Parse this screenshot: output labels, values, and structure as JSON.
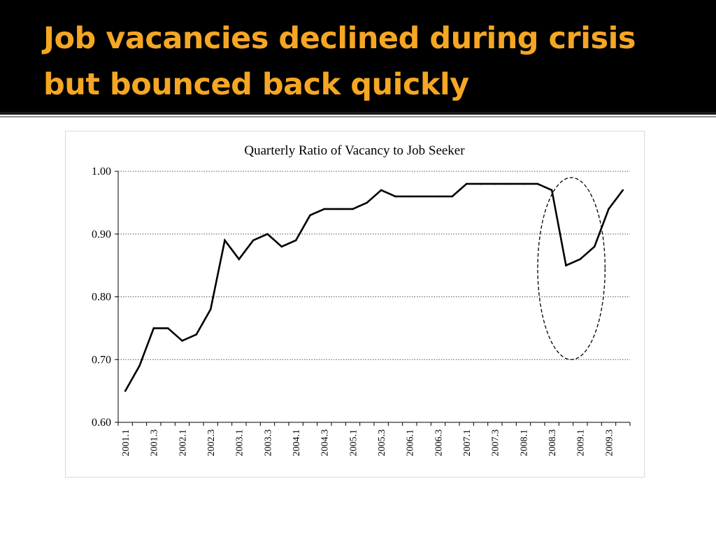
{
  "slide": {
    "title_line1": "Job vacancies declined during crisis",
    "title_line2": "but bounced back quickly"
  },
  "colors": {
    "title_band": "#000000",
    "title_text": "#f5a623",
    "series_line": "#000000",
    "gridline": "#555555"
  },
  "chart_data": {
    "type": "line",
    "title": "Quarterly Ratio of Vacancy to Job Seeker",
    "xlabel": "",
    "ylabel": "",
    "ylim": [
      0.6,
      1.0
    ],
    "yticks": [
      "1.00",
      "0.90",
      "0.80",
      "0.70",
      "0.60"
    ],
    "ytick_values": [
      1.0,
      0.9,
      0.8,
      0.7,
      0.6
    ],
    "grid": "horizontal-dotted",
    "categories": [
      "2001.1",
      "2001.2",
      "2001.3",
      "2001.4",
      "2002.1",
      "2002.2",
      "2002.3",
      "2002.4",
      "2003.1",
      "2003.2",
      "2003.3",
      "2003.4",
      "2004.1",
      "2004.2",
      "2004.3",
      "2004.4",
      "2005.1",
      "2005.2",
      "2005.3",
      "2005.4",
      "2006.1",
      "2006.2",
      "2006.3",
      "2006.4",
      "2007.1",
      "2007.2",
      "2007.3",
      "2007.4",
      "2008.1",
      "2008.2",
      "2008.3",
      "2008.4",
      "2009.1",
      "2009.2",
      "2009.3",
      "2009.4"
    ],
    "tick_labels": [
      "2001.1",
      "2001.3",
      "2002.1",
      "2002.3",
      "2003.1",
      "2003.3",
      "2004.1",
      "2004.3",
      "2005.1",
      "2005.3",
      "2006.1",
      "2006.3",
      "2007.1",
      "2007.3",
      "2008.1",
      "2008.3",
      "2009.1",
      "2009.3"
    ],
    "series": [
      {
        "name": "Ratio of Vacancy to Job Seeker",
        "values": [
          0.65,
          0.69,
          0.75,
          0.75,
          0.73,
          0.74,
          0.78,
          0.89,
          0.86,
          0.89,
          0.9,
          0.88,
          0.89,
          0.93,
          0.94,
          0.94,
          0.94,
          0.95,
          0.97,
          0.96,
          0.96,
          0.96,
          0.96,
          0.96,
          0.98,
          0.98,
          0.98,
          0.98,
          0.98,
          0.98,
          0.97,
          0.85,
          0.86,
          0.88,
          0.94,
          0.97
        ]
      }
    ],
    "annotation": {
      "type": "dashed-ellipse",
      "covers_from": "2008.3",
      "covers_to": "2009.2",
      "y_range": [
        0.7,
        0.99
      ]
    }
  }
}
